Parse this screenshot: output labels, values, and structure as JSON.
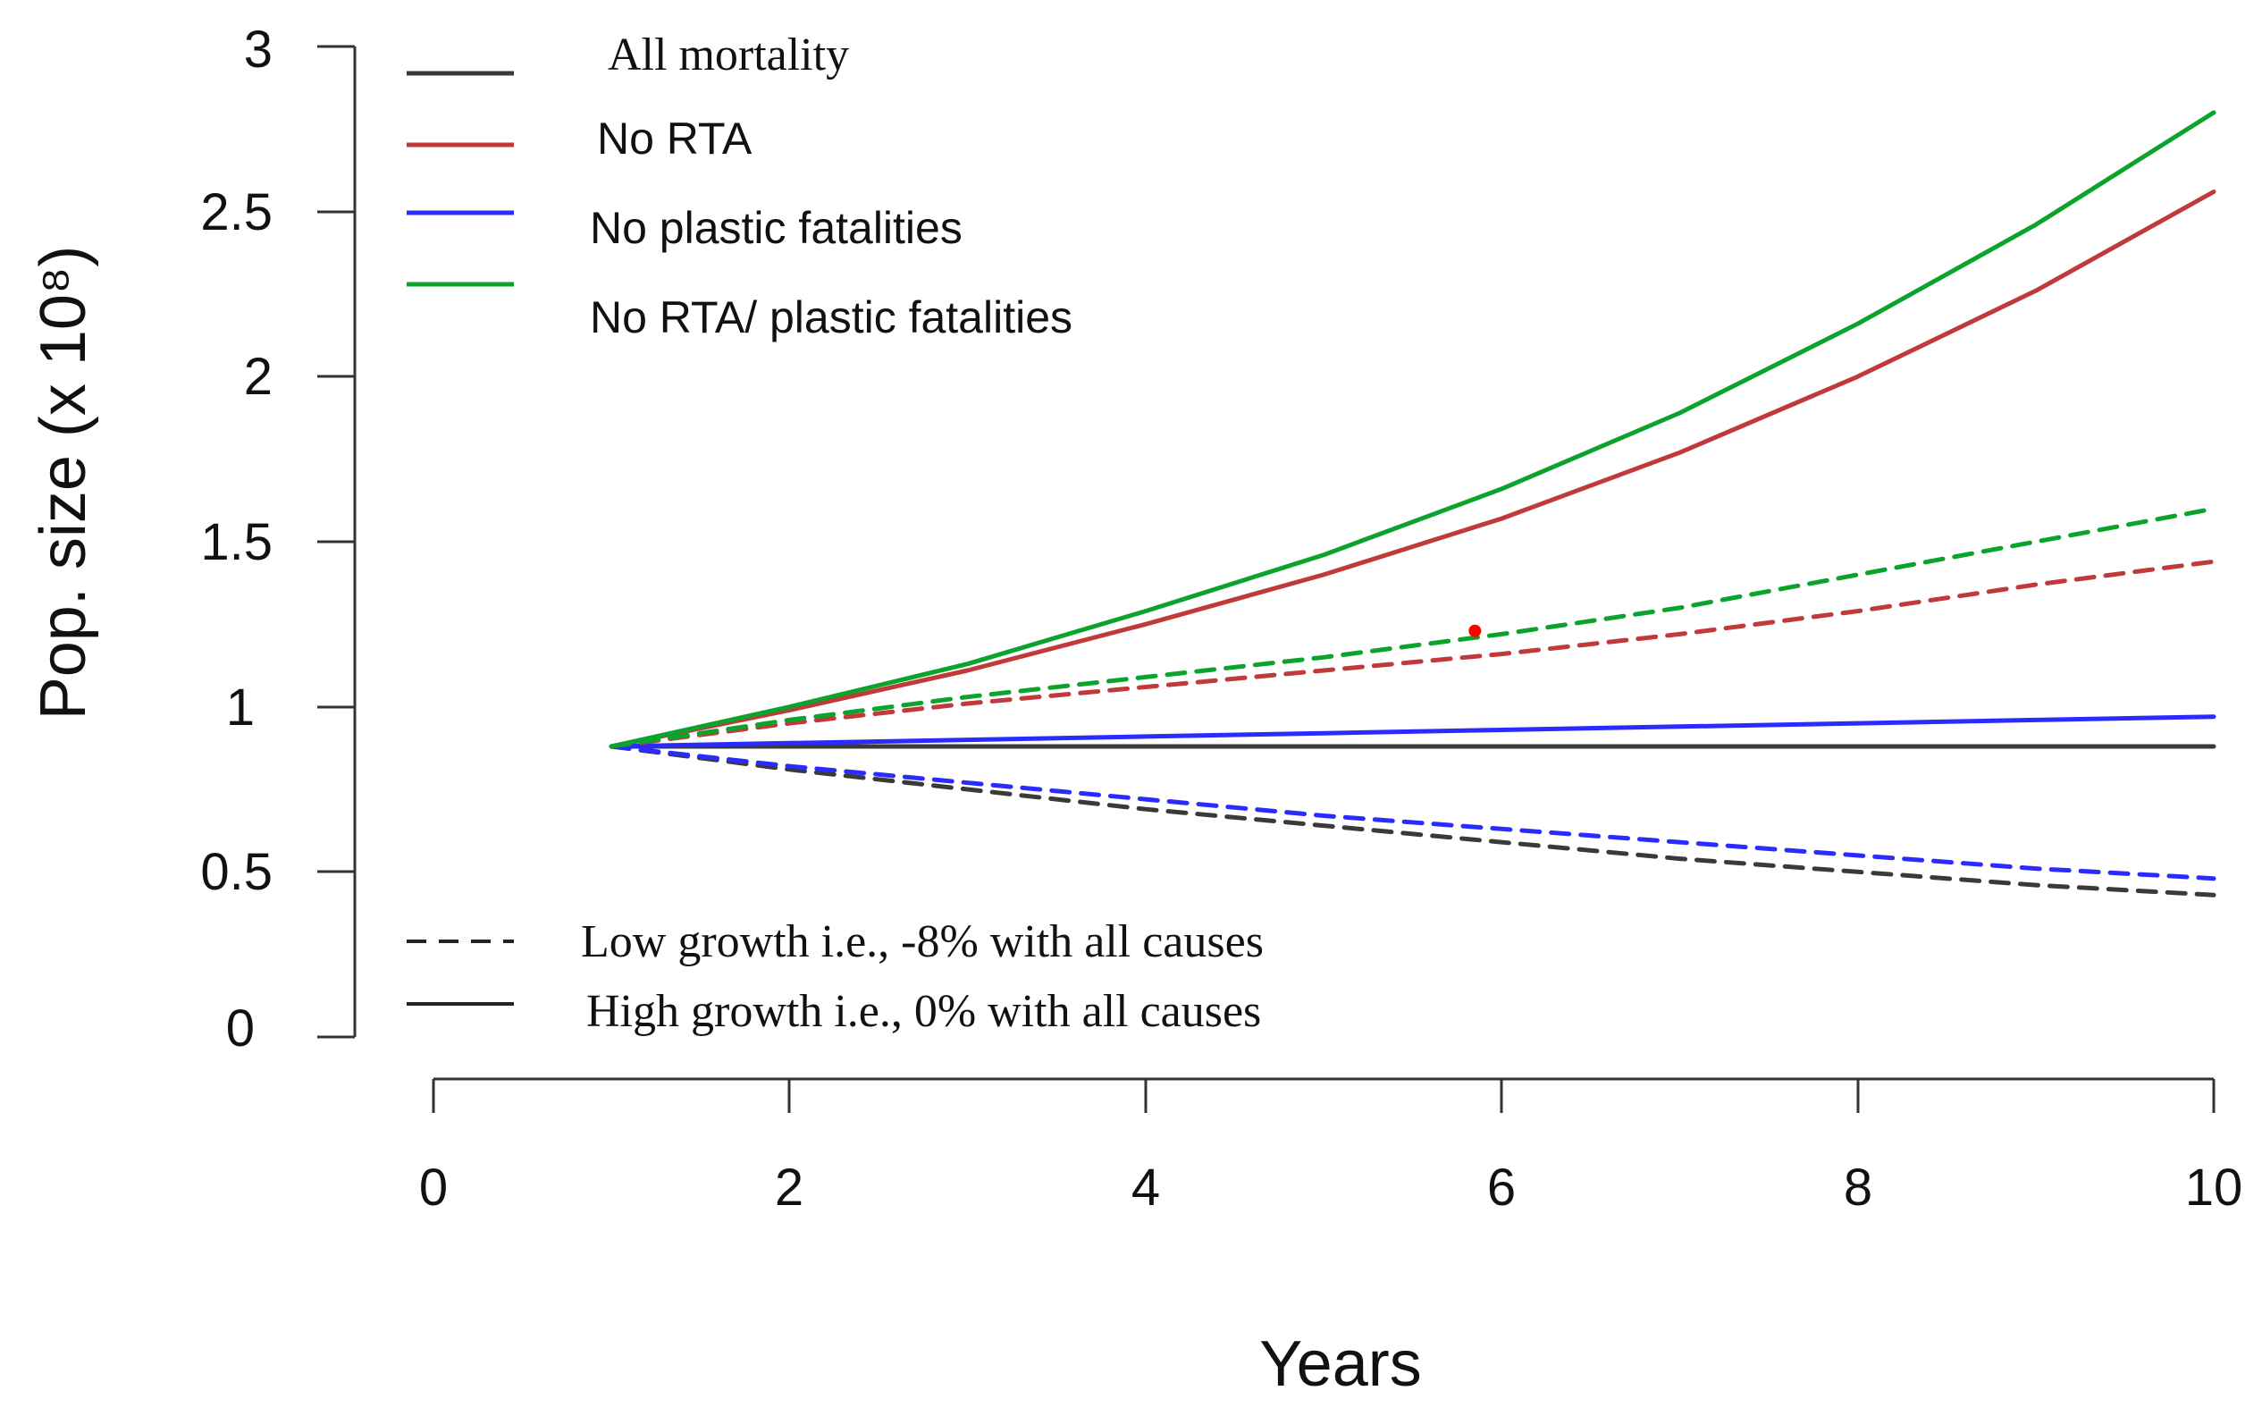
{
  "chart_data": {
    "type": "line",
    "xlabel": "Years",
    "ylabel": "Pop. size (x 10⁸)",
    "xlim": [
      0,
      10
    ],
    "ylim": [
      0,
      3
    ],
    "xticks": [
      "0",
      "2",
      "4",
      "6",
      "8",
      "10"
    ],
    "yticks": [
      "0",
      "0.5",
      "1",
      "1.5",
      "2",
      "2.5",
      "3"
    ],
    "x": [
      1,
      2,
      3,
      4,
      5,
      6,
      7,
      8,
      9,
      10
    ],
    "series": [
      {
        "name": "All mortality",
        "scenario": "High growth",
        "color": "#3a3a3a",
        "dash": "solid",
        "values": [
          0.88,
          0.88,
          0.88,
          0.88,
          0.88,
          0.88,
          0.88,
          0.88,
          0.88,
          0.88
        ]
      },
      {
        "name": "No RTA",
        "scenario": "High growth",
        "color": "#c0393b",
        "dash": "solid",
        "values": [
          0.88,
          0.99,
          1.11,
          1.25,
          1.4,
          1.57,
          1.77,
          2.0,
          2.26,
          2.56
        ]
      },
      {
        "name": "No plastic fatalities",
        "scenario": "High growth",
        "color": "#2b2bff",
        "dash": "solid",
        "values": [
          0.88,
          0.89,
          0.9,
          0.91,
          0.92,
          0.93,
          0.94,
          0.95,
          0.96,
          0.97
        ]
      },
      {
        "name": "No RTA/ plastic fatalities",
        "scenario": "High growth",
        "color": "#0ca32c",
        "dash": "solid",
        "values": [
          0.88,
          1.0,
          1.13,
          1.29,
          1.46,
          1.66,
          1.89,
          2.16,
          2.46,
          2.8
        ]
      },
      {
        "name": "All mortality",
        "scenario": "Low growth",
        "color": "#3a3a3a",
        "dash": "dashed",
        "values": [
          0.88,
          0.81,
          0.75,
          0.69,
          0.64,
          0.59,
          0.54,
          0.5,
          0.46,
          0.43
        ]
      },
      {
        "name": "No RTA",
        "scenario": "Low growth",
        "color": "#c0393b",
        "dash": "dashed",
        "values": [
          0.88,
          0.95,
          1.01,
          1.06,
          1.11,
          1.16,
          1.22,
          1.29,
          1.37,
          1.44
        ]
      },
      {
        "name": "No plastic fatalities",
        "scenario": "Low growth",
        "color": "#2b2bff",
        "dash": "dashed",
        "values": [
          0.88,
          0.82,
          0.77,
          0.72,
          0.67,
          0.63,
          0.59,
          0.55,
          0.51,
          0.48
        ]
      },
      {
        "name": "No RTA/ plastic fatalities",
        "scenario": "Low growth",
        "color": "#0ca32c",
        "dash": "dashed",
        "values": [
          0.88,
          0.96,
          1.03,
          1.09,
          1.15,
          1.22,
          1.3,
          1.4,
          1.5,
          1.6
        ]
      }
    ],
    "annotations": [
      {
        "type": "point",
        "x": 5.85,
        "y": 1.23,
        "color": "#ff0000"
      }
    ],
    "legend": {
      "placement": "top-left",
      "items": [
        {
          "label": "All mortality",
          "color": "#3a3a3a"
        },
        {
          "label": "No RTA",
          "color": "#c0393b"
        },
        {
          "label": "No plastic fatalities",
          "color": "#2b2bff"
        },
        {
          "label": "No RTA/ plastic fatalities",
          "color": "#0ca32c"
        }
      ]
    },
    "linestyle_legend": {
      "placement": "bottom-left",
      "items": [
        {
          "label": "Low growth i.e., -8% with all causes",
          "dash": "dashed"
        },
        {
          "label": "High growth i.e., 0% with all causes",
          "dash": "solid"
        }
      ]
    }
  }
}
